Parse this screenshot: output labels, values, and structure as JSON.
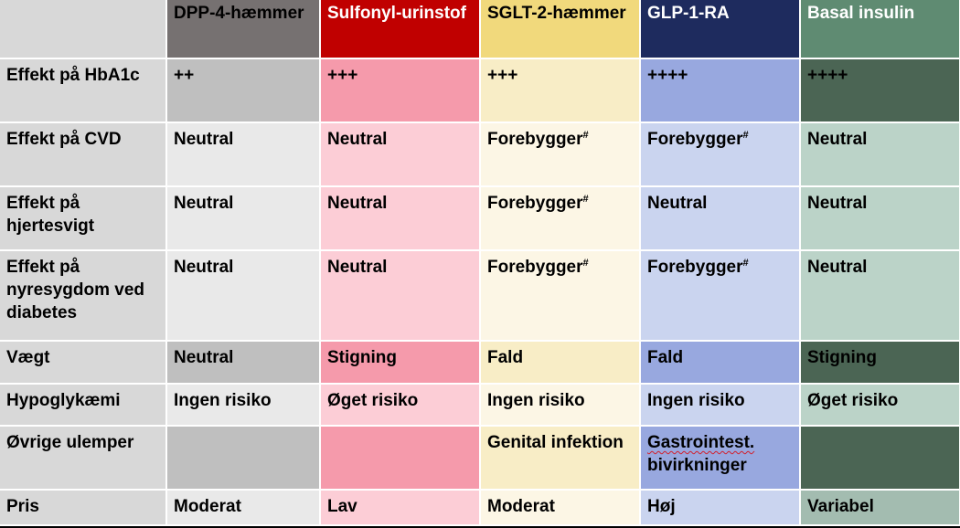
{
  "columns": [
    {
      "label": "DPP-4-hæmmer",
      "head_bg": "#767171",
      "head_fg": "#000000",
      "dark_bg": "#bfbfbf",
      "light_bg": "#e9e9e9",
      "light_alt_bg": "#e9e9e9"
    },
    {
      "label": "Sulfonyl-urinstof",
      "head_bg": "#c00000",
      "head_fg": "#ffffff",
      "dark_bg": "#f59aab",
      "light_bg": "#fccdd6",
      "light_alt_bg": "#fccdd6"
    },
    {
      "label": "SGLT-2-hæmmer",
      "head_bg": "#f1d97c",
      "head_fg": "#000000",
      "dark_bg": "#f8edc6",
      "light_bg": "#fcf6e5",
      "light_alt_bg": "#fcf6e5"
    },
    {
      "label": "GLP-1-RA",
      "head_bg": "#1e2b5e",
      "head_fg": "#ffffff",
      "dark_bg": "#98a8df",
      "light_bg": "#cad4ef",
      "light_alt_bg": "#cad4ef"
    },
    {
      "label": "Basal insulin",
      "head_bg": "#5f8b72",
      "head_fg": "#ffffff",
      "dark_bg": "#4b6554",
      "light_bg": "#bbd3c8",
      "light_alt_bg": "#a3bcb0"
    }
  ],
  "rows": [
    {
      "label": "Effekt på HbA1c",
      "cells": [
        {
          "text": "++"
        },
        {
          "text": "+++"
        },
        {
          "text": "+++"
        },
        {
          "text": "++++"
        },
        {
          "text": "++++"
        }
      ]
    },
    {
      "label": "Effekt på CVD",
      "cells": [
        {
          "text": "Neutral"
        },
        {
          "text": "Neutral"
        },
        {
          "text": "Forebygger",
          "sup": "#"
        },
        {
          "text": "Forebygger",
          "sup": "#"
        },
        {
          "text": "Neutral"
        }
      ]
    },
    {
      "label": "Effekt på hjertesvigt",
      "cells": [
        {
          "text": "Neutral"
        },
        {
          "text": "Neutral"
        },
        {
          "text": "Forebygger",
          "sup": "#"
        },
        {
          "text": "Neutral"
        },
        {
          "text": "Neutral"
        }
      ]
    },
    {
      "label": "Effekt på nyresygdom ved diabetes",
      "cells": [
        {
          "text": "Neutral"
        },
        {
          "text": "Neutral"
        },
        {
          "text": "Forebygger",
          "sup": "#"
        },
        {
          "text": "Forebygger",
          "sup": "#"
        },
        {
          "text": "Neutral"
        }
      ]
    },
    {
      "label": "Vægt",
      "cells": [
        {
          "text": "Neutral"
        },
        {
          "text": "Stigning"
        },
        {
          "text": "Fald"
        },
        {
          "text": "Fald"
        },
        {
          "text": "Stigning"
        }
      ]
    },
    {
      "label": "Hypoglykæmi",
      "cells": [
        {
          "text": "Ingen risiko"
        },
        {
          "text": "Øget risiko"
        },
        {
          "text": "Ingen risiko"
        },
        {
          "text": "Ingen risiko"
        },
        {
          "text": "Øget risiko"
        }
      ]
    },
    {
      "label": "Øvrige ulemper",
      "cells": [
        {
          "text": ""
        },
        {
          "text": ""
        },
        {
          "text": "Genital infektion"
        },
        {
          "text": "Gastrointest. bivirkninger",
          "underlined_word": "Gastrointest."
        },
        {
          "text": ""
        }
      ]
    },
    {
      "label": "Pris",
      "cells": [
        {
          "text": "Moderat"
        },
        {
          "text": "Lav"
        },
        {
          "text": "Moderat"
        },
        {
          "text": "Høj"
        },
        {
          "text": "Variabel"
        }
      ]
    }
  ]
}
